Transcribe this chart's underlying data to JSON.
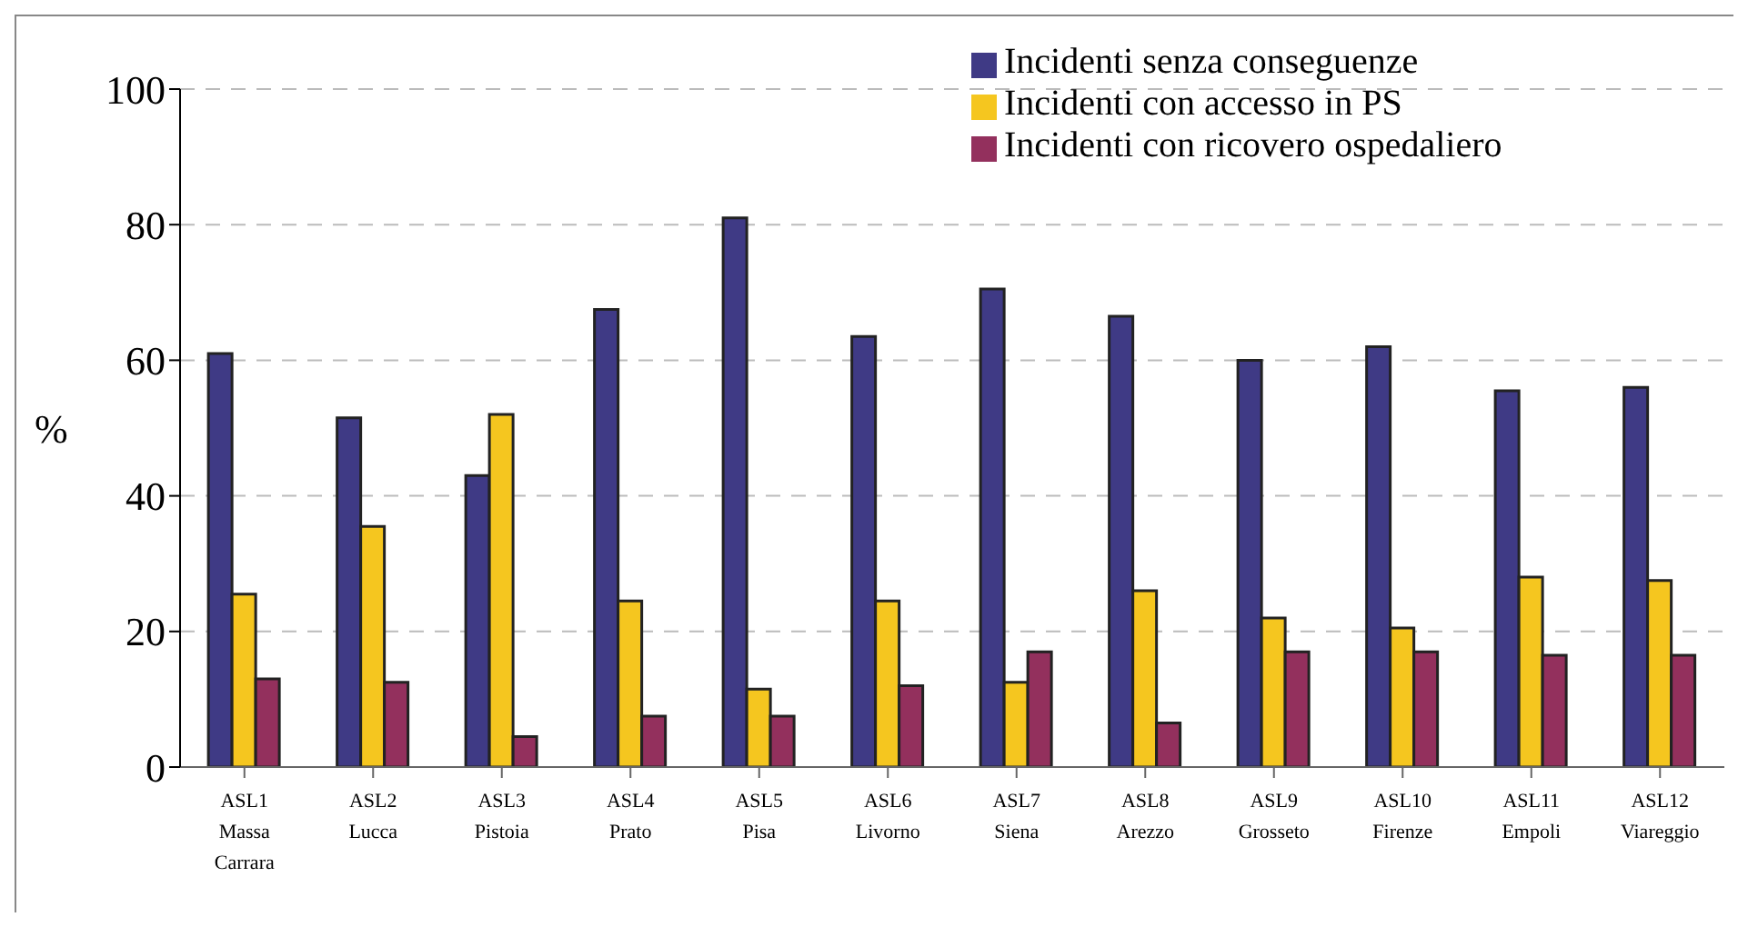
{
  "chart_data": {
    "type": "bar",
    "ylabel": "%",
    "categories": [
      "ASL1\nMassa\nCarrara",
      "ASL2\nLucca",
      "ASL3\nPistoia",
      "ASL4\nPrato",
      "ASL5\nPisa",
      "ASL6\nLivorno",
      "ASL7\nSiena",
      "ASL8\nArezzo",
      "ASL9\nGrosseto",
      "ASL10\nFirenze",
      "ASL11\nEmpoli",
      "ASL12\nViareggio"
    ],
    "series": [
      {
        "name": "Incidenti senza conseguenze",
        "color": "#3f3a85",
        "values": [
          61,
          51.5,
          43,
          67.5,
          81,
          63.5,
          70.5,
          66.5,
          60,
          62,
          55.5,
          56
        ]
      },
      {
        "name": "Incidenti con accesso in PS",
        "color": "#f5c61f",
        "values": [
          25.5,
          35.5,
          52,
          24.5,
          11.5,
          24.5,
          12.5,
          26,
          22,
          20.5,
          28,
          27.5
        ]
      },
      {
        "name": "Incidenti con ricovero ospedaliero",
        "color": "#93305d",
        "values": [
          13,
          12.5,
          4.5,
          7.5,
          7.5,
          12,
          17,
          6.5,
          17,
          17,
          16.5,
          16.5
        ]
      }
    ],
    "ylim": [
      0,
      100
    ],
    "yticks": [
      0,
      20,
      40,
      60,
      80,
      100
    ],
    "grid": "y",
    "legend": "top right"
  }
}
